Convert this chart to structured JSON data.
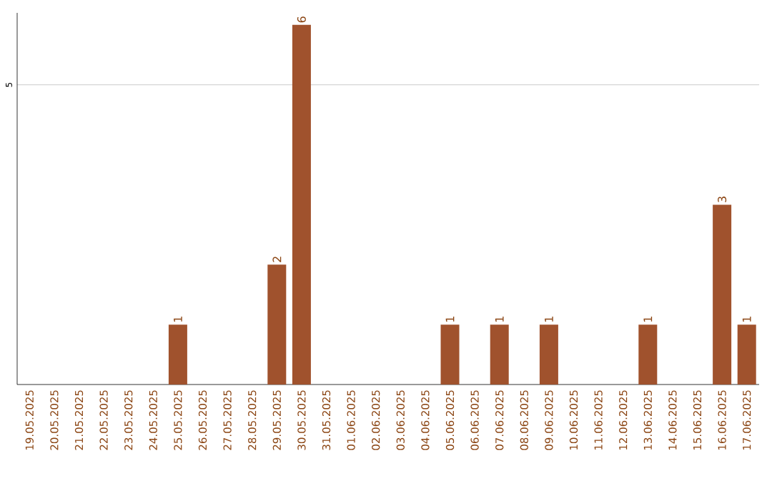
{
  "chart_data": {
    "type": "bar",
    "categories": [
      "19.05.2025",
      "20.05.2025",
      "21.05.2025",
      "22.05.2025",
      "23.05.2025",
      "24.05.2025",
      "25.05.2025",
      "26.05.2025",
      "27.05.2025",
      "28.05.2025",
      "29.05.2025",
      "30.05.2025",
      "31.05.2025",
      "01.06.2025",
      "02.06.2025",
      "03.06.2025",
      "04.06.2025",
      "05.06.2025",
      "06.06.2025",
      "07.06.2025",
      "08.06.2025",
      "09.06.2025",
      "10.06.2025",
      "11.06.2025",
      "12.06.2025",
      "13.06.2025",
      "14.06.2025",
      "15.06.2025",
      "16.06.2025",
      "17.06.2025"
    ],
    "values": [
      0,
      0,
      0,
      0,
      0,
      0,
      1,
      0,
      0,
      0,
      2,
      6,
      0,
      0,
      0,
      0,
      0,
      1,
      0,
      1,
      0,
      1,
      0,
      0,
      0,
      1,
      0,
      0,
      3,
      1
    ],
    "value_labels": [
      null,
      null,
      null,
      null,
      null,
      null,
      "1",
      null,
      null,
      null,
      "2",
      "6",
      null,
      null,
      null,
      null,
      null,
      "1",
      null,
      "1",
      null,
      "1",
      null,
      null,
      null,
      "1",
      null,
      null,
      "3",
      "1"
    ],
    "color": "#a0522d",
    "ylim": [
      0,
      6.2
    ],
    "yticks": [
      5
    ],
    "grid": "y"
  }
}
